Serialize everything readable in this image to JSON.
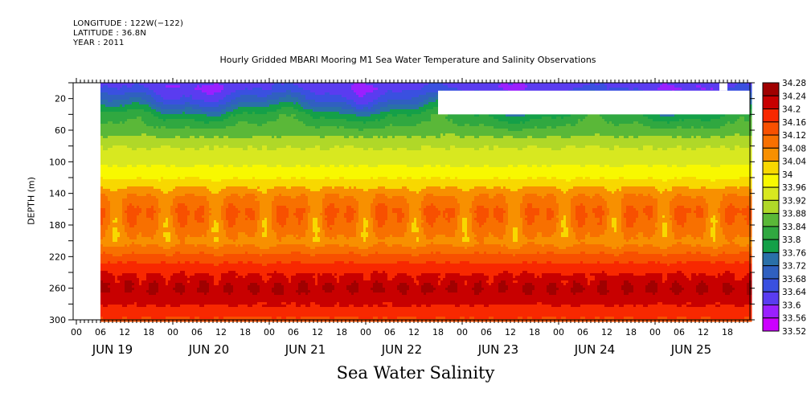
{
  "header": {
    "longitude": "LONGITUDE : 122W(−122)",
    "latitude": "LATITUDE : 36.8N",
    "year": "YEAR : 2011"
  },
  "chart_data": {
    "type": "heatmap",
    "title": "Hourly Gridded MBARI Mooring M1 Sea Water Temperature and Salinity Observations",
    "xlabel": "Sea Water Salinity",
    "ylabel": "DEPTH (m)",
    "variable": "Sea Water Salinity",
    "x_axis": {
      "kind": "time",
      "start": "2011-06-19T00",
      "end": "2011-06-26T00",
      "hour_tick_labels": [
        "00",
        "06",
        "12",
        "18"
      ],
      "day_labels": [
        "JUN 19",
        "JUN 20",
        "JUN 21",
        "JUN 22",
        "JUN 23",
        "JUN 24",
        "JUN 25"
      ],
      "data_start": "2011-06-19T06"
    },
    "y_axis": {
      "range": [
        0,
        300
      ],
      "inverted": true,
      "tick_labels": [
        "20",
        "60",
        "100",
        "140",
        "180",
        "220",
        "260",
        "300"
      ],
      "tick_values": [
        20,
        60,
        100,
        140,
        180,
        220,
        260,
        300
      ]
    },
    "colorbar": {
      "levels": [
        33.52,
        33.56,
        33.6,
        33.64,
        33.68,
        33.72,
        33.76,
        33.8,
        33.84,
        33.88,
        33.92,
        33.96,
        34,
        34.04,
        34.08,
        34.12,
        34.16,
        34.2,
        34.24,
        34.28
      ],
      "labels": [
        "34.28",
        "34.24",
        "34.2",
        "34.16",
        "34.12",
        "34.08",
        "34.04",
        "34",
        "33.96",
        "33.92",
        "33.88",
        "33.84",
        "33.8",
        "33.76",
        "33.72",
        "33.68",
        "33.64",
        "33.6",
        "33.56",
        "33.52"
      ],
      "colors": [
        "#cc00ff",
        "#9a20ff",
        "#7a30ff",
        "#5a3cf0",
        "#3a50e0",
        "#3060c0",
        "#2a70a8",
        "#208870",
        "#14a048",
        "#30a840",
        "#5ab838",
        "#88c830",
        "#b0d828",
        "#d8e820",
        "#f8f800",
        "#f8d800",
        "#f8b000",
        "#f89000",
        "#f87000",
        "#f85000",
        "#f82800",
        "#e80000",
        "#c80000",
        "#a00000"
      ]
    },
    "depth_profile_mean": [
      {
        "depth": 5,
        "salinity": 33.62
      },
      {
        "depth": 20,
        "salinity": 33.68
      },
      {
        "depth": 40,
        "salinity": 33.8
      },
      {
        "depth": 60,
        "salinity": 33.86
      },
      {
        "depth": 80,
        "salinity": 33.92
      },
      {
        "depth": 100,
        "salinity": 33.95
      },
      {
        "depth": 120,
        "salinity": 34.0
      },
      {
        "depth": 140,
        "salinity": 34.07
      },
      {
        "depth": 160,
        "salinity": 34.11
      },
      {
        "depth": 180,
        "salinity": 34.09
      },
      {
        "depth": 200,
        "salinity": 34.06
      },
      {
        "depth": 220,
        "salinity": 34.14
      },
      {
        "depth": 240,
        "salinity": 34.2
      },
      {
        "depth": 260,
        "salinity": 34.24
      },
      {
        "depth": 280,
        "salinity": 34.2
      },
      {
        "depth": 300,
        "salinity": 34.15
      }
    ],
    "missing_regions": [
      {
        "time_start": "2011-06-19T00",
        "time_end": "2011-06-19T06",
        "depth_min": 0,
        "depth_max": 300
      },
      {
        "time_start": "2011-06-22T18",
        "time_end": "2011-06-26T00",
        "depth_min": 10,
        "depth_max": 40
      },
      {
        "time_start": "2011-06-25T16",
        "time_end": "2011-06-25T18",
        "depth_min": 0,
        "depth_max": 10
      }
    ]
  }
}
